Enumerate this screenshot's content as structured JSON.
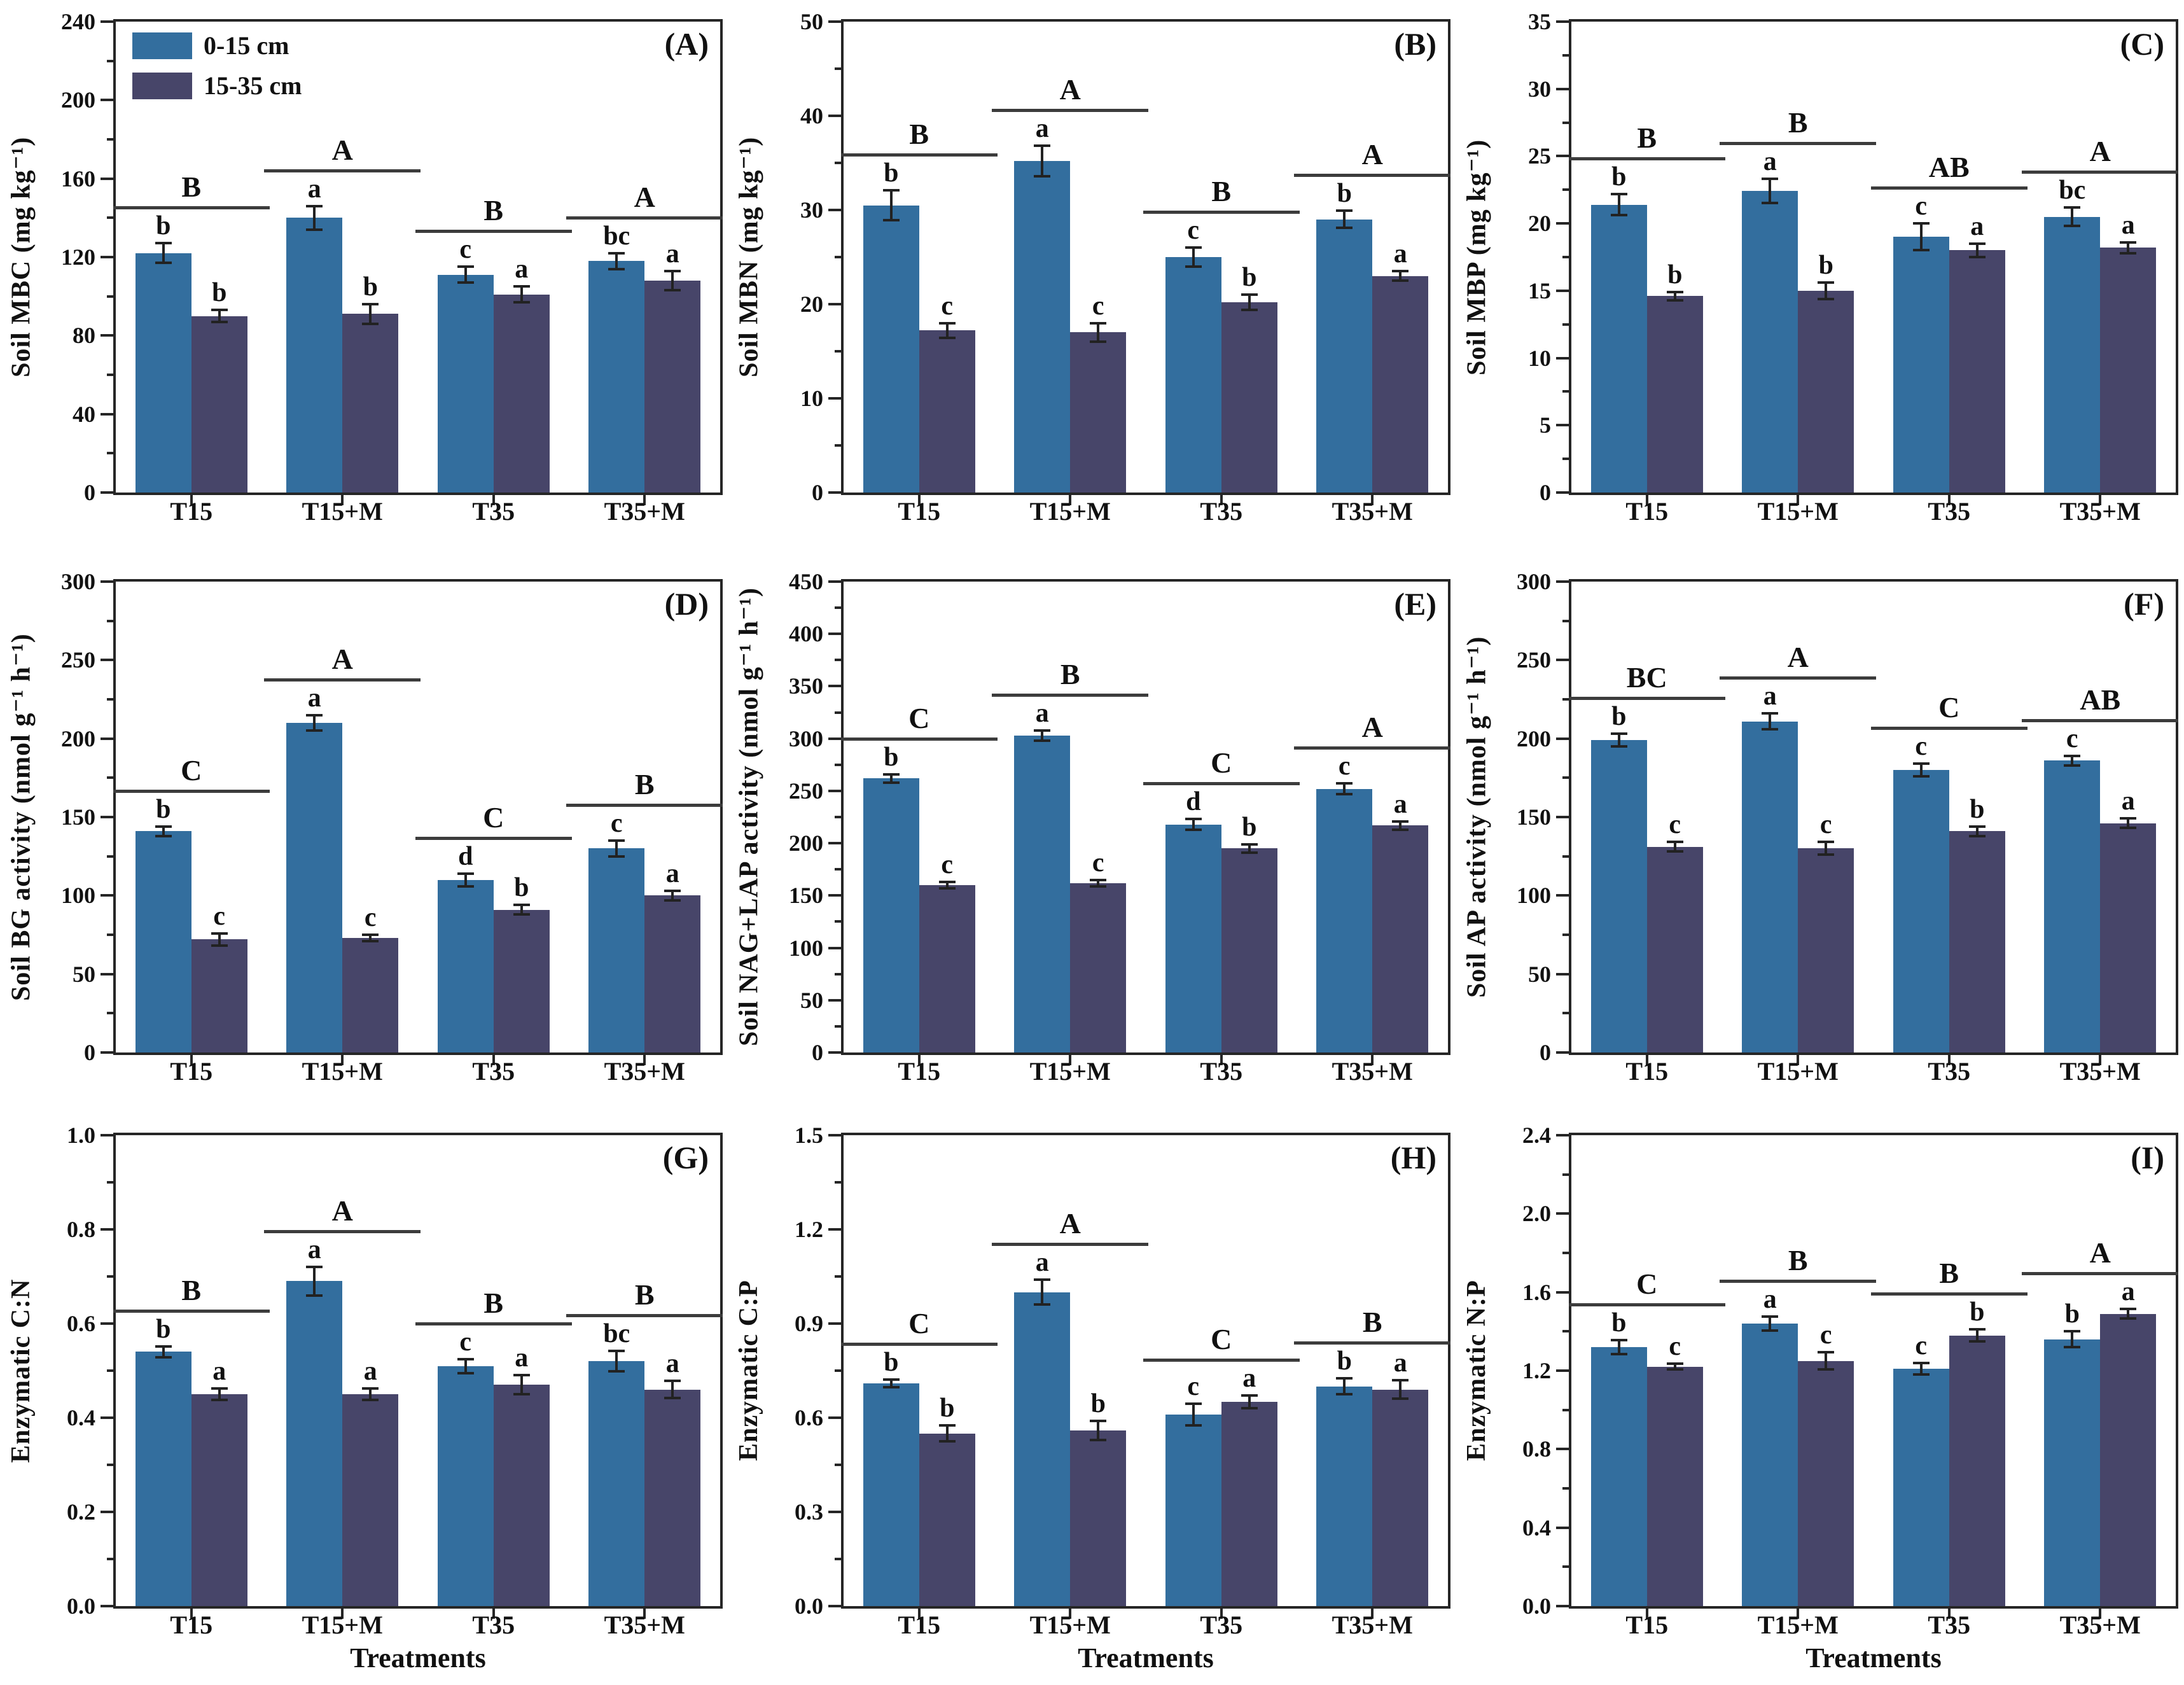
{
  "legend": {
    "items": [
      {
        "label": "0-15 cm",
        "color": "#336e9e"
      },
      {
        "label": "15-35 cm",
        "color": "#474569"
      }
    ]
  },
  "x_axis_title": "Treatments",
  "categories": [
    "T15",
    "T15+M",
    "T35",
    "T35+M"
  ],
  "chart_data": [
    {
      "id": "A",
      "tag": "(A)",
      "type": "bar",
      "ylabel": "Soil MBC (mg kg⁻¹)",
      "ylim": [
        0,
        240
      ],
      "ytick_labels": [
        "0",
        "40",
        "80",
        "120",
        "160",
        "200",
        "240"
      ],
      "categories": [
        "T15",
        "T15+M",
        "T35",
        "T35+M"
      ],
      "series": [
        {
          "name": "0-15 cm",
          "values": [
            122,
            140,
            111,
            118
          ],
          "errors": [
            5,
            6,
            4,
            4
          ],
          "letters": [
            "b",
            "a",
            "c",
            "bc"
          ]
        },
        {
          "name": "15-35 cm",
          "values": [
            90,
            91,
            101,
            108
          ],
          "errors": [
            3,
            5,
            4,
            5
          ],
          "letters": [
            "b",
            "b",
            "a",
            "a"
          ]
        }
      ],
      "group_letters": [
        "B",
        "A",
        "B",
        "A"
      ],
      "xlabel": "",
      "show_legend": true
    },
    {
      "id": "B",
      "tag": "(B)",
      "type": "bar",
      "ylabel": "Soil MBN (mg kg⁻¹)",
      "ylim": [
        0,
        50
      ],
      "ytick_labels": [
        "0",
        "10",
        "20",
        "30",
        "40",
        "50"
      ],
      "categories": [
        "T15",
        "T15+M",
        "T35",
        "T35+M"
      ],
      "series": [
        {
          "name": "0-15 cm",
          "values": [
            30.5,
            35.2,
            25.0,
            29.0
          ],
          "errors": [
            1.6,
            1.6,
            1.0,
            0.9
          ],
          "letters": [
            "b",
            "a",
            "c",
            "b"
          ]
        },
        {
          "name": "15-35 cm",
          "values": [
            17.2,
            17.0,
            20.2,
            23.0
          ],
          "errors": [
            0.8,
            1.0,
            0.8,
            0.5
          ],
          "letters": [
            "c",
            "c",
            "b",
            "a"
          ]
        }
      ],
      "group_letters": [
        "B",
        "A",
        "B",
        "A"
      ],
      "xlabel": "",
      "show_legend": false
    },
    {
      "id": "C",
      "tag": "(C)",
      "type": "bar",
      "ylabel": "Soil MBP (mg kg⁻¹)",
      "ylim": [
        0,
        35
      ],
      "ytick_labels": [
        "0",
        "5",
        "10",
        "15",
        "20",
        "25",
        "30",
        "35"
      ],
      "categories": [
        "T15",
        "T15+M",
        "T35",
        "T35+M"
      ],
      "series": [
        {
          "name": "0-15 cm",
          "values": [
            21.4,
            22.4,
            19.0,
            20.5
          ],
          "errors": [
            0.8,
            0.9,
            1.0,
            0.7
          ],
          "letters": [
            "b",
            "a",
            "c",
            "bc"
          ]
        },
        {
          "name": "15-35 cm",
          "values": [
            14.6,
            15.0,
            18.0,
            18.2
          ],
          "errors": [
            0.3,
            0.6,
            0.5,
            0.4
          ],
          "letters": [
            "b",
            "b",
            "a",
            "a"
          ]
        }
      ],
      "group_letters": [
        "B",
        "B",
        "AB",
        "A"
      ],
      "xlabel": "",
      "show_legend": false
    },
    {
      "id": "D",
      "tag": "(D)",
      "type": "bar",
      "ylabel": "Soil BG activity (nmol g⁻¹ h⁻¹)",
      "ylim": [
        0,
        300
      ],
      "ytick_labels": [
        "0",
        "50",
        "100",
        "150",
        "200",
        "250",
        "300"
      ],
      "categories": [
        "T15",
        "T15+M",
        "T35",
        "T35+M"
      ],
      "series": [
        {
          "name": "0-15 cm",
          "values": [
            141,
            210,
            110,
            130
          ],
          "errors": [
            3,
            5,
            4,
            5
          ],
          "letters": [
            "b",
            "a",
            "d",
            "c"
          ]
        },
        {
          "name": "15-35 cm",
          "values": [
            72,
            73,
            91,
            100
          ],
          "errors": [
            4,
            2,
            3,
            3
          ],
          "letters": [
            "c",
            "c",
            "b",
            "a"
          ]
        }
      ],
      "group_letters": [
        "C",
        "A",
        "C",
        "B"
      ],
      "xlabel": "",
      "show_legend": false
    },
    {
      "id": "E",
      "tag": "(E)",
      "type": "bar",
      "ylabel": "Soil NAG+LAP activity (nmol g⁻¹ h⁻¹)",
      "ylim": [
        0,
        450
      ],
      "ytick_labels": [
        "0",
        "50",
        "100",
        "150",
        "200",
        "250",
        "300",
        "350",
        "400",
        "450"
      ],
      "categories": [
        "T15",
        "T15+M",
        "T35",
        "T35+M"
      ],
      "series": [
        {
          "name": "0-15 cm",
          "values": [
            262,
            303,
            218,
            252
          ],
          "errors": [
            4,
            5,
            5,
            5
          ],
          "letters": [
            "b",
            "a",
            "d",
            "c"
          ]
        },
        {
          "name": "15-35 cm",
          "values": [
            160,
            162,
            195,
            217
          ],
          "errors": [
            3,
            3,
            4,
            4
          ],
          "letters": [
            "c",
            "c",
            "b",
            "a"
          ]
        }
      ],
      "group_letters": [
        "C",
        "B",
        "C",
        "A"
      ],
      "xlabel": "",
      "show_legend": false
    },
    {
      "id": "F",
      "tag": "(F)",
      "type": "bar",
      "ylabel": "Soil AP activity (nmol g⁻¹ h⁻¹)",
      "ylim": [
        0,
        300
      ],
      "ytick_labels": [
        "0",
        "50",
        "100",
        "150",
        "200",
        "250",
        "300"
      ],
      "categories": [
        "T15",
        "T15+M",
        "T35",
        "T35+M"
      ],
      "series": [
        {
          "name": "0-15 cm",
          "values": [
            199,
            211,
            180,
            186
          ],
          "errors": [
            4,
            5,
            4,
            3
          ],
          "letters": [
            "b",
            "a",
            "c",
            "c"
          ]
        },
        {
          "name": "15-35 cm",
          "values": [
            131,
            130,
            141,
            146
          ],
          "errors": [
            3,
            4,
            3,
            3
          ],
          "letters": [
            "c",
            "c",
            "b",
            "a"
          ]
        }
      ],
      "group_letters": [
        "BC",
        "A",
        "C",
        "AB"
      ],
      "xlabel": "",
      "show_legend": false
    },
    {
      "id": "G",
      "tag": "(G)",
      "type": "bar",
      "ylabel": "Enzymatic C:N",
      "ylim": [
        0,
        1.0
      ],
      "ytick_labels": [
        "0.0",
        "0.2",
        "0.4",
        "0.6",
        "0.8",
        "1.0"
      ],
      "categories": [
        "T15",
        "T15+M",
        "T35",
        "T35+M"
      ],
      "series": [
        {
          "name": "0-15 cm",
          "values": [
            0.54,
            0.69,
            0.51,
            0.52
          ],
          "errors": [
            0.012,
            0.03,
            0.015,
            0.022
          ],
          "letters": [
            "b",
            "a",
            "c",
            "bc"
          ]
        },
        {
          "name": "15-35 cm",
          "values": [
            0.45,
            0.45,
            0.47,
            0.46
          ],
          "errors": [
            0.012,
            0.012,
            0.02,
            0.018
          ],
          "letters": [
            "a",
            "a",
            "a",
            "a"
          ]
        }
      ],
      "group_letters": [
        "B",
        "A",
        "B",
        "B"
      ],
      "xlabel": "Treatments",
      "show_legend": false
    },
    {
      "id": "H",
      "tag": "(H)",
      "type": "bar",
      "ylabel": "Enzymatic C:P",
      "ylim": [
        0,
        1.5
      ],
      "ytick_labels": [
        "0.0",
        "0.3",
        "0.6",
        "0.9",
        "1.2",
        "1.5"
      ],
      "categories": [
        "T15",
        "T15+M",
        "T35",
        "T35+M"
      ],
      "series": [
        {
          "name": "0-15 cm",
          "values": [
            0.71,
            1.0,
            0.61,
            0.7
          ],
          "errors": [
            0.012,
            0.04,
            0.035,
            0.025
          ],
          "letters": [
            "b",
            "a",
            "c",
            "b"
          ]
        },
        {
          "name": "15-35 cm",
          "values": [
            0.55,
            0.56,
            0.65,
            0.69
          ],
          "errors": [
            0.025,
            0.03,
            0.02,
            0.03
          ],
          "letters": [
            "b",
            "b",
            "a",
            "a"
          ]
        }
      ],
      "group_letters": [
        "C",
        "A",
        "C",
        "B"
      ],
      "xlabel": "Treatments",
      "show_legend": false
    },
    {
      "id": "I",
      "tag": "(I)",
      "type": "bar",
      "ylabel": "Enzymatic N:P",
      "ylim": [
        0,
        2.4
      ],
      "ytick_labels": [
        "0.0",
        "0.4",
        "0.8",
        "1.2",
        "1.6",
        "2.0",
        "2.4"
      ],
      "categories": [
        "T15",
        "T15+M",
        "T35",
        "T35+M"
      ],
      "series": [
        {
          "name": "0-15 cm",
          "values": [
            1.32,
            1.44,
            1.21,
            1.36
          ],
          "errors": [
            0.035,
            0.035,
            0.03,
            0.04
          ],
          "letters": [
            "b",
            "a",
            "c",
            "b"
          ]
        },
        {
          "name": "15-35 cm",
          "values": [
            1.22,
            1.25,
            1.38,
            1.49
          ],
          "errors": [
            0.015,
            0.045,
            0.03,
            0.025
          ],
          "letters": [
            "c",
            "c",
            "b",
            "a"
          ]
        }
      ],
      "group_letters": [
        "C",
        "B",
        "B",
        "A"
      ],
      "xlabel": "Treatments",
      "show_legend": false
    }
  ]
}
